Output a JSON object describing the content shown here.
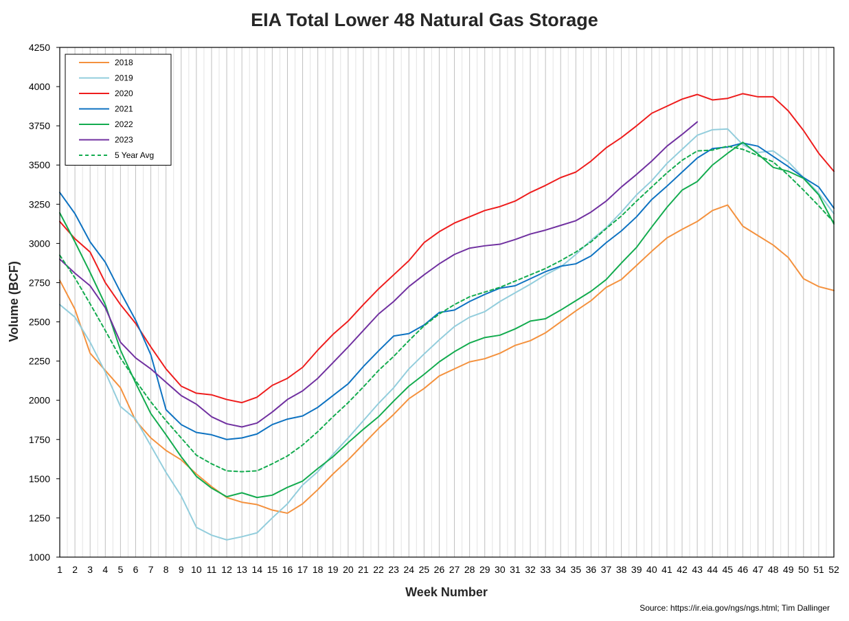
{
  "chart_data": {
    "type": "line",
    "title": "EIA Total Lower 48 Natural Gas Storage",
    "xlabel": "Week Number",
    "ylabel": "Volume (BCF)",
    "xlim": [
      1,
      52
    ],
    "ylim": [
      1000,
      4250
    ],
    "yticks": [
      1000,
      1250,
      1500,
      1750,
      2000,
      2250,
      2500,
      2750,
      3000,
      3250,
      3500,
      3750,
      4000,
      4250
    ],
    "grid": "vertical",
    "legend_position": "top-left",
    "source": "Source: https://ir.eia.gov/ngs/ngs.html; Tim Dallinger",
    "series": [
      {
        "name": "2018",
        "color": "#f4913d",
        "dashed": false,
        "values": [
          2765,
          2580,
          2300,
          2190,
          2080,
          1870,
          1760,
          1680,
          1620,
          1530,
          1450,
          1380,
          1350,
          1335,
          1300,
          1280,
          1340,
          1430,
          1530,
          1620,
          1720,
          1820,
          1910,
          2010,
          2075,
          2155,
          2200,
          2245,
          2265,
          2300,
          2350,
          2380,
          2430,
          2500,
          2570,
          2635,
          2720,
          2770,
          2860,
          2950,
          3035,
          3090,
          3140,
          3210,
          3245,
          3110,
          3050,
          2990,
          2910,
          2775,
          2725,
          2700
        ]
      },
      {
        "name": "2019",
        "color": "#92cddc",
        "dashed": false,
        "values": [
          2610,
          2530,
          2370,
          2180,
          1960,
          1880,
          1710,
          1540,
          1390,
          1190,
          1140,
          1110,
          1130,
          1155,
          1250,
          1340,
          1460,
          1545,
          1655,
          1760,
          1870,
          1980,
          2080,
          2200,
          2295,
          2385,
          2470,
          2530,
          2565,
          2630,
          2685,
          2740,
          2800,
          2850,
          2930,
          3020,
          3100,
          3200,
          3310,
          3400,
          3510,
          3600,
          3690,
          3725,
          3730,
          3630,
          3580,
          3590,
          3520,
          3420,
          3320,
          3190
        ]
      },
      {
        "name": "2020",
        "color": "#ee1c1c",
        "dashed": false,
        "values": [
          3140,
          3030,
          2945,
          2750,
          2610,
          2490,
          2340,
          2200,
          2090,
          2045,
          2035,
          2005,
          1985,
          2020,
          2095,
          2140,
          2210,
          2320,
          2420,
          2505,
          2610,
          2710,
          2800,
          2890,
          3005,
          3075,
          3130,
          3170,
          3210,
          3235,
          3270,
          3325,
          3370,
          3420,
          3455,
          3525,
          3610,
          3675,
          3750,
          3830,
          3875,
          3920,
          3950,
          3915,
          3925,
          3955,
          3935,
          3935,
          3845,
          3720,
          3575,
          3460
        ]
      },
      {
        "name": "2021",
        "color": "#0d72c1",
        "dashed": false,
        "values": [
          3325,
          3190,
          3010,
          2880,
          2690,
          2510,
          2290,
          1940,
          1845,
          1795,
          1780,
          1750,
          1760,
          1785,
          1845,
          1880,
          1900,
          1955,
          2030,
          2105,
          2215,
          2315,
          2410,
          2425,
          2480,
          2560,
          2575,
          2630,
          2675,
          2715,
          2730,
          2775,
          2820,
          2855,
          2870,
          2920,
          3005,
          3080,
          3170,
          3280,
          3365,
          3455,
          3545,
          3605,
          3615,
          3640,
          3620,
          3555,
          3490,
          3420,
          3360,
          3225
        ]
      },
      {
        "name": "2022",
        "color": "#12ab4e",
        "dashed": false,
        "values": [
          3195,
          3010,
          2815,
          2610,
          2320,
          2110,
          1915,
          1780,
          1640,
          1515,
          1440,
          1385,
          1410,
          1380,
          1395,
          1445,
          1485,
          1565,
          1640,
          1730,
          1815,
          1895,
          1995,
          2090,
          2165,
          2245,
          2310,
          2365,
          2400,
          2415,
          2455,
          2505,
          2520,
          2575,
          2635,
          2695,
          2770,
          2875,
          2975,
          3105,
          3230,
          3340,
          3395,
          3500,
          3575,
          3645,
          3570,
          3485,
          3460,
          3415,
          3310,
          3125
        ]
      },
      {
        "name": "2023",
        "color": "#7030a0",
        "dashed": false,
        "values": [
          2900,
          2810,
          2730,
          2590,
          2370,
          2270,
          2200,
          2115,
          2030,
          1975,
          1895,
          1850,
          1830,
          1855,
          1925,
          2005,
          2060,
          2140,
          2240,
          2340,
          2445,
          2550,
          2630,
          2725,
          2800,
          2870,
          2930,
          2970,
          2985,
          2995,
          3025,
          3060,
          3085,
          3115,
          3145,
          3200,
          3270,
          3360,
          3440,
          3525,
          3620,
          3695,
          3775,
          null,
          null,
          null,
          null,
          null,
          null,
          null,
          null,
          null
        ]
      },
      {
        "name": "5 Year Avg",
        "color": "#12ab4e",
        "dashed": true,
        "values": [
          2925,
          2780,
          2615,
          2445,
          2270,
          2125,
          1990,
          1870,
          1760,
          1650,
          1595,
          1550,
          1545,
          1550,
          1595,
          1645,
          1715,
          1800,
          1895,
          1985,
          2085,
          2190,
          2280,
          2380,
          2475,
          2550,
          2610,
          2660,
          2690,
          2720,
          2760,
          2800,
          2840,
          2890,
          2945,
          3010,
          3095,
          3175,
          3270,
          3360,
          3450,
          3530,
          3590,
          3595,
          3620,
          3600,
          3560,
          3520,
          3435,
          3340,
          3240,
          3135
        ]
      }
    ]
  }
}
